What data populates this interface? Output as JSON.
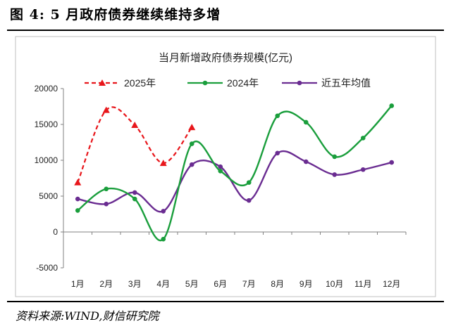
{
  "figure": {
    "title": "图 4:  5 月政府债券继续维持多增",
    "source": "资料来源:WIND,财信研究院"
  },
  "chart_data": {
    "type": "line",
    "title": "当月新增政府债券规模(亿元)",
    "xlabel": "",
    "ylabel": "",
    "categories": [
      "1月",
      "2月",
      "3月",
      "4月",
      "5月",
      "6月",
      "7月",
      "8月",
      "9月",
      "10月",
      "11月",
      "12月"
    ],
    "ylim": [
      -5000,
      20000
    ],
    "yticks": [
      -5000,
      0,
      5000,
      10000,
      15000,
      20000
    ],
    "legend_position": "top",
    "grid": false,
    "series": [
      {
        "name": "2025年",
        "color": "#e8161b",
        "style": "dashed",
        "marker": "triangle",
        "values": [
          6900,
          17000,
          14900,
          9600,
          14600,
          null,
          null,
          null,
          null,
          null,
          null,
          null
        ]
      },
      {
        "name": "2024年",
        "color": "#1a9e3c",
        "style": "solid",
        "marker": "circle",
        "values": [
          3000,
          6000,
          4600,
          -1000,
          12300,
          8500,
          6900,
          16200,
          15300,
          10500,
          13100,
          17600
        ]
      },
      {
        "name": "近五年均值",
        "color": "#6a2c91",
        "style": "solid",
        "marker": "circle",
        "values": [
          4600,
          3900,
          5500,
          2900,
          9400,
          9100,
          4400,
          11000,
          9800,
          8000,
          8700,
          9700
        ]
      }
    ]
  }
}
